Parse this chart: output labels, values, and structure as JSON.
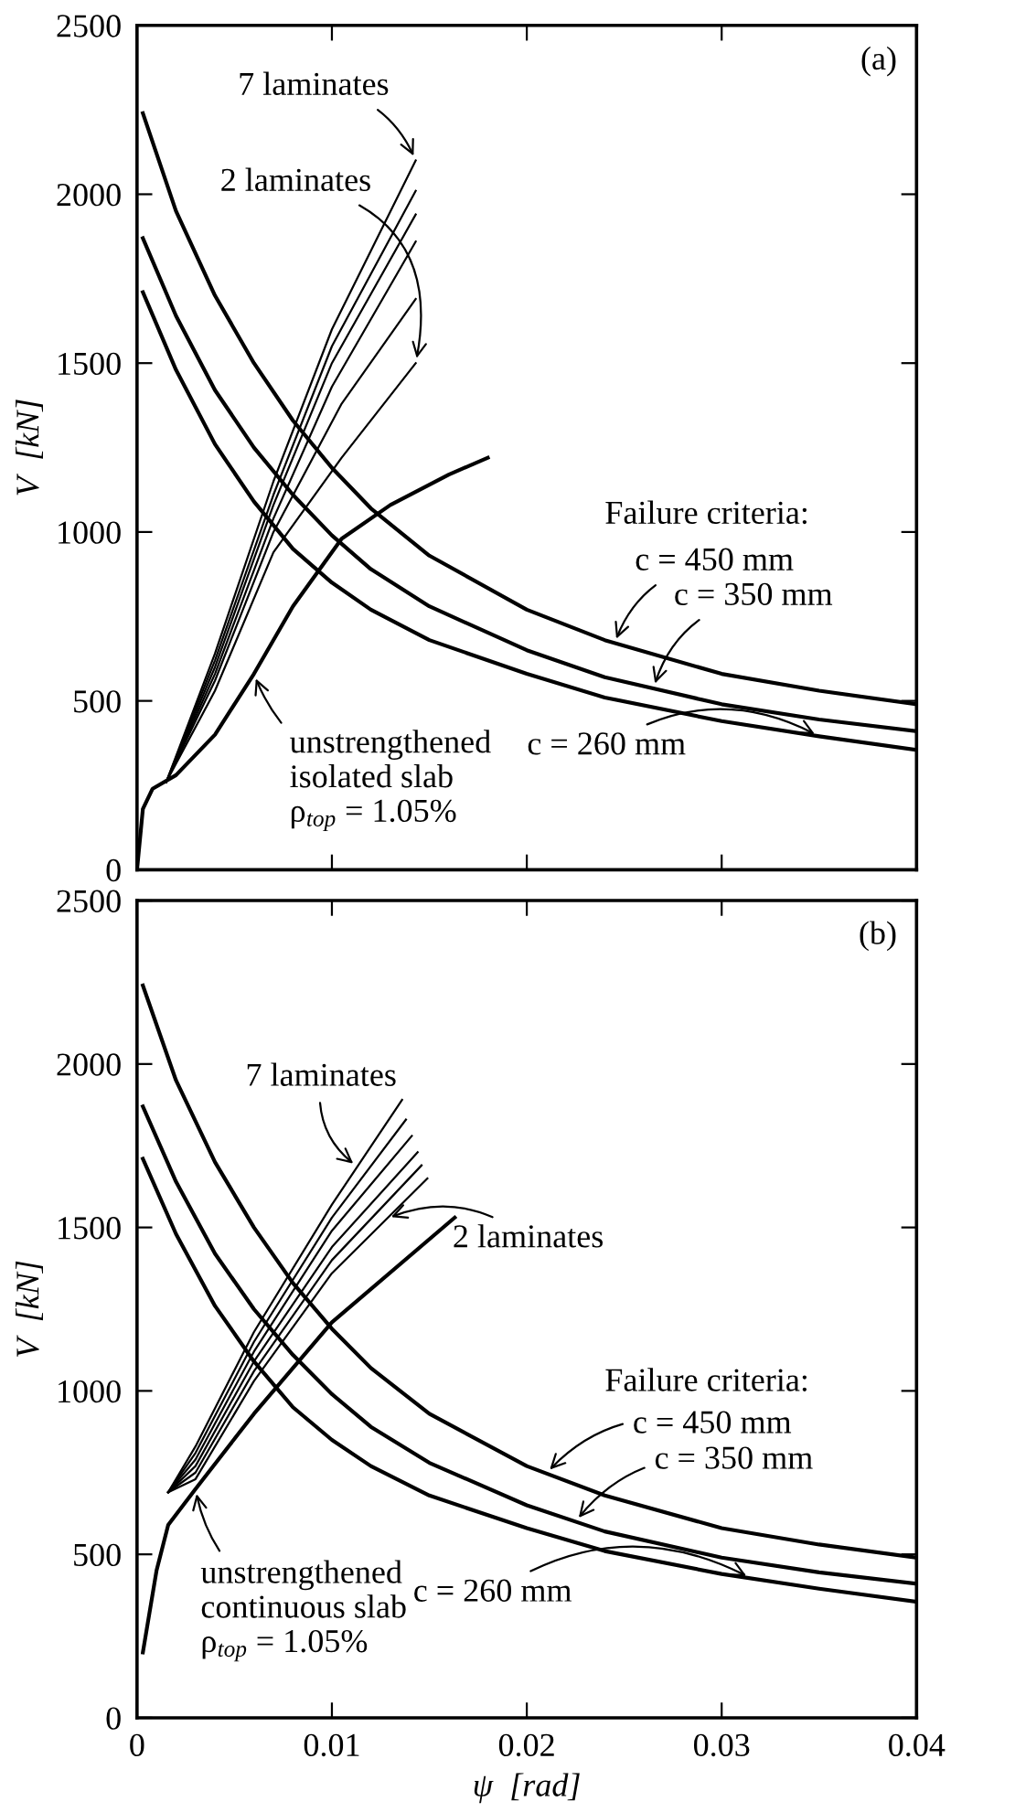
{
  "chart_data": [
    {
      "type": "line",
      "title": "(a)",
      "ylabel": "V  [kN]",
      "xlim": [
        0,
        0.04
      ],
      "ylim": [
        0,
        2500
      ],
      "xticks": [
        0,
        0.01,
        0.02,
        0.03,
        0.04
      ],
      "yticks": [
        0,
        500,
        1000,
        1500,
        2000,
        2500
      ],
      "tick_labels": "y",
      "grid": false,
      "legend": false,
      "marker": "none",
      "line_style": "solid",
      "series": [
        {
          "color": "#000000",
          "x": [
            0.0003,
            0.002,
            0.004,
            0.006,
            0.008,
            0.01,
            0.012,
            0.015,
            0.02,
            0.024,
            0.03,
            0.035,
            0.04
          ],
          "values": [
            2240,
            1950,
            1700,
            1500,
            1330,
            1190,
            1070,
            930,
            770,
            680,
            580,
            530,
            490
          ]
        },
        {
          "color": "#000000",
          "x": [
            0.0003,
            0.002,
            0.004,
            0.006,
            0.008,
            0.01,
            0.012,
            0.015,
            0.02,
            0.024,
            0.03,
            0.035,
            0.04
          ],
          "values": [
            1870,
            1640,
            1420,
            1250,
            1110,
            990,
            890,
            780,
            650,
            570,
            490,
            445,
            410
          ]
        },
        {
          "color": "#000000",
          "x": [
            0.0003,
            0.002,
            0.004,
            0.006,
            0.008,
            0.01,
            0.012,
            0.015,
            0.02,
            0.024,
            0.03,
            0.035,
            0.04
          ],
          "values": [
            1710,
            1480,
            1260,
            1090,
            950,
            850,
            770,
            680,
            580,
            510,
            440,
            395,
            355
          ]
        },
        {
          "color": "#000000",
          "x": [
            0,
            0.0003,
            0.0008,
            0.002,
            0.004,
            0.006,
            0.008,
            0.0105,
            0.013,
            0.016,
            0.018
          ],
          "values": [
            0,
            180,
            240,
            280,
            400,
            580,
            780,
            980,
            1080,
            1170,
            1220
          ]
        },
        {
          "color": "#000000",
          "x": [
            0.0015,
            0.004,
            0.007,
            0.01,
            0.0143
          ],
          "values": [
            260,
            640,
            1150,
            1600,
            2100
          ]
        },
        {
          "color": "#000000",
          "x": [
            0.0015,
            0.004,
            0.007,
            0.01,
            0.0143
          ],
          "values": [
            260,
            620,
            1110,
            1550,
            2010
          ]
        },
        {
          "color": "#000000",
          "x": [
            0.0015,
            0.004,
            0.007,
            0.01,
            0.0143
          ],
          "values": [
            260,
            600,
            1080,
            1500,
            1940
          ]
        },
        {
          "color": "#000000",
          "x": [
            0.0015,
            0.004,
            0.007,
            0.01,
            0.0143
          ],
          "values": [
            260,
            580,
            1040,
            1430,
            1860
          ]
        },
        {
          "color": "#000000",
          "x": [
            0.0015,
            0.004,
            0.007,
            0.0105,
            0.0143
          ],
          "values": [
            260,
            560,
            1000,
            1380,
            1690
          ]
        },
        {
          "color": "#000000",
          "x": [
            0.0015,
            0.004,
            0.007,
            0.0105,
            0.0143
          ],
          "values": [
            260,
            530,
            940,
            1220,
            1500
          ]
        }
      ],
      "annotations": [
        {
          "text": "7 laminates",
          "x": 0.0143,
          "y": 2100
        },
        {
          "text": "2 laminates",
          "x": 0.0143,
          "y": 1500
        },
        {
          "text": "unstrengthened\nisolated slab\nρ$_{top}$ = 1.05%",
          "x": 0.006,
          "y": 580
        },
        "Failure criteria:",
        {
          "text": "c = 450 mm",
          "x": 0.0245,
          "y": 670
        },
        {
          "text": "c = 350 mm",
          "x": 0.0265,
          "y": 537
        },
        {
          "text": "c = 260 mm",
          "x": 0.035,
          "y": 395
        }
      ]
    },
    {
      "type": "line",
      "title": "(b)",
      "xlabel": "ψ  [rad]",
      "ylabel": "V  [kN]",
      "xlim": [
        0,
        0.04
      ],
      "ylim": [
        0,
        2500
      ],
      "xticks": [
        0,
        0.01,
        0.02,
        0.03,
        0.04
      ],
      "yticks": [
        0,
        500,
        1000,
        1500,
        2000,
        2500
      ],
      "grid": false,
      "legend": false,
      "marker": "none",
      "line_style": "solid",
      "series": [
        {
          "color": "#000000",
          "x": [
            0.0003,
            0.002,
            0.004,
            0.006,
            0.008,
            0.01,
            0.012,
            0.015,
            0.02,
            0.024,
            0.03,
            0.035,
            0.04
          ],
          "values": [
            2240,
            1950,
            1700,
            1500,
            1330,
            1190,
            1070,
            930,
            770,
            680,
            580,
            530,
            490
          ]
        },
        {
          "color": "#000000",
          "x": [
            0.0003,
            0.002,
            0.004,
            0.006,
            0.008,
            0.01,
            0.012,
            0.015,
            0.02,
            0.024,
            0.03,
            0.035,
            0.04
          ],
          "values": [
            1870,
            1640,
            1420,
            1250,
            1110,
            990,
            890,
            780,
            650,
            570,
            490,
            445,
            410
          ]
        },
        {
          "color": "#000000",
          "x": [
            0.0003,
            0.002,
            0.004,
            0.006,
            0.008,
            0.01,
            0.012,
            0.015,
            0.02,
            0.024,
            0.03,
            0.035,
            0.04
          ],
          "values": [
            1710,
            1480,
            1260,
            1090,
            950,
            850,
            770,
            680,
            580,
            510,
            440,
            395,
            355
          ]
        },
        {
          "color": "#000000",
          "x": [
            0.0003,
            0.001,
            0.0016,
            0.003,
            0.006,
            0.01,
            0.0163
          ],
          "values": [
            200,
            450,
            590,
            700,
            930,
            1210,
            1530
          ]
        },
        {
          "color": "#000000",
          "x": [
            0.0016,
            0.003,
            0.006,
            0.01,
            0.0136
          ],
          "values": [
            690,
            830,
            1180,
            1570,
            1890
          ]
        },
        {
          "color": "#000000",
          "x": [
            0.0016,
            0.003,
            0.006,
            0.01,
            0.0138
          ],
          "values": [
            690,
            810,
            1150,
            1530,
            1830
          ]
        },
        {
          "color": "#000000",
          "x": [
            0.0016,
            0.003,
            0.006,
            0.01,
            0.0141
          ],
          "values": [
            690,
            790,
            1120,
            1490,
            1780
          ]
        },
        {
          "color": "#000000",
          "x": [
            0.0016,
            0.003,
            0.006,
            0.01,
            0.0144
          ],
          "values": [
            690,
            770,
            1090,
            1440,
            1730
          ]
        },
        {
          "color": "#000000",
          "x": [
            0.0016,
            0.003,
            0.006,
            0.01,
            0.0146
          ],
          "values": [
            690,
            750,
            1060,
            1400,
            1690
          ]
        },
        {
          "color": "#000000",
          "x": [
            0.0016,
            0.003,
            0.006,
            0.01,
            0.0149
          ],
          "values": [
            690,
            730,
            1030,
            1360,
            1650
          ]
        }
      ],
      "annotations": [
        {
          "text": "7 laminates",
          "x": 0.0113,
          "y": 1686
        },
        {
          "text": "2 laminates",
          "x": 0.0128,
          "y": 1526
        },
        {
          "text": "unstrengthened\ncontinuous slab\nρ$_{top}$ = 1.05%",
          "x": 0.003,
          "y": 700
        },
        "Failure criteria:",
        {
          "text": "c = 450 mm",
          "x": 0.021,
          "y": 748
        },
        {
          "text": "c = 350 mm",
          "x": 0.0225,
          "y": 600
        },
        {
          "text": "c = 260 mm",
          "x": 0.0315,
          "y": 427
        }
      ]
    }
  ]
}
